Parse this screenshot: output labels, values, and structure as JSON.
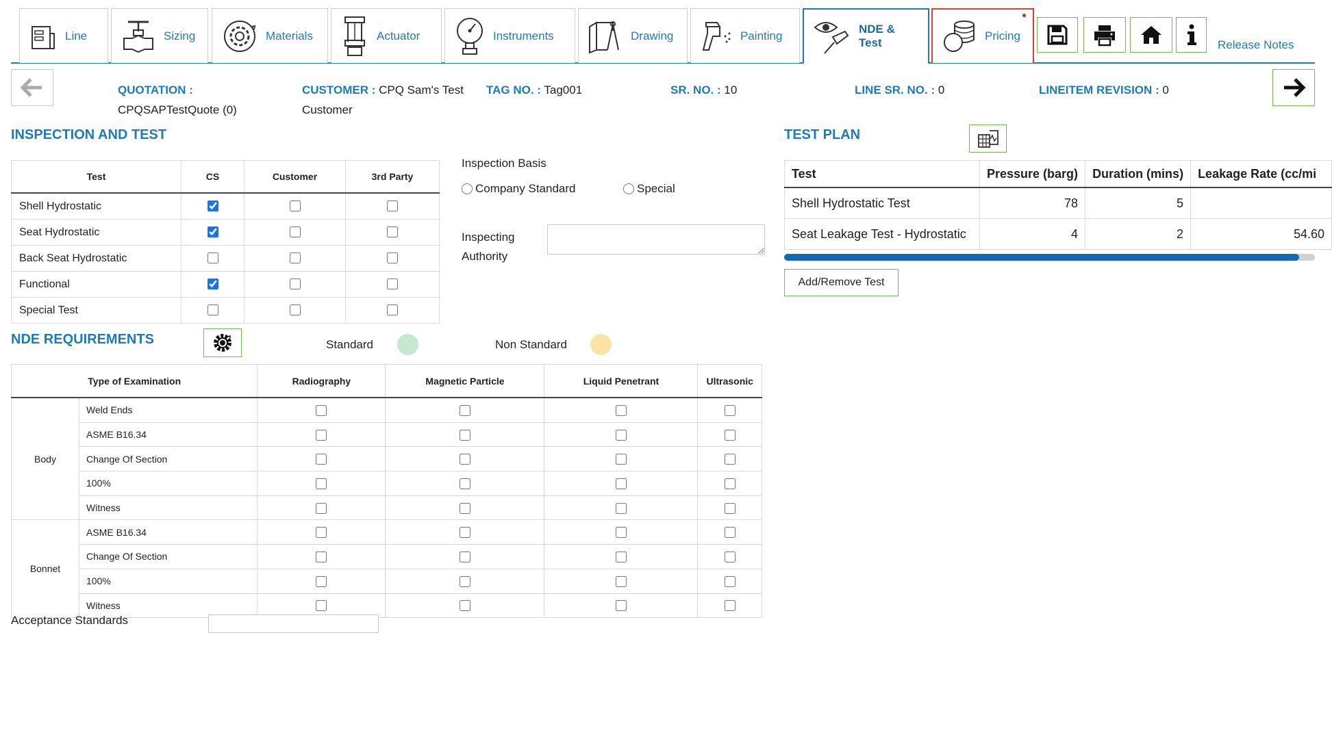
{
  "tabs": [
    {
      "label": "Line",
      "icon": "line-icon"
    },
    {
      "label": "Sizing",
      "icon": "valve-icon"
    },
    {
      "label": "Materials",
      "icon": "gear-cycle-icon"
    },
    {
      "label": "Actuator",
      "icon": "actuator-icon"
    },
    {
      "label": "Instruments",
      "icon": "gauge-icon"
    },
    {
      "label": "Drawing",
      "icon": "drawing-icon"
    },
    {
      "label": "Painting",
      "icon": "spray-gun-icon"
    },
    {
      "label": "NDE & Test",
      "icon": "eye-probe-icon",
      "active": true
    },
    {
      "label": "Pricing",
      "icon": "coins-icon",
      "notification": true
    }
  ],
  "toolbar": {
    "icons": [
      "save-icon",
      "print-icon",
      "home-icon",
      "info-icon"
    ],
    "release_notes": "Release Notes"
  },
  "header": {
    "quotation_label": "QUOTATION :",
    "quotation_value": "CPQSAPTestQuote (0)",
    "customer_label": "CUSTOMER :",
    "customer_value": "CPQ Sam's Test Customer",
    "tag_label": "TAG NO. :",
    "tag_value": "Tag001",
    "sr_label": "SR. NO. :",
    "sr_value": "10",
    "line_sr_label": "LINE SR. NO. :",
    "line_sr_value": "0",
    "revision_label": "LINEITEM REVISION :",
    "revision_value": "0"
  },
  "inspection": {
    "title": "INSPECTION AND TEST",
    "columns": [
      "Test",
      "CS",
      "Customer",
      "3rd Party"
    ],
    "rows": [
      {
        "label": "Shell Hydrostatic",
        "cs": true,
        "customer": false,
        "third": false
      },
      {
        "label": "Seat Hydrostatic",
        "cs": true,
        "customer": false,
        "third": false
      },
      {
        "label": "Back Seat Hydrostatic",
        "cs": false,
        "customer": false,
        "third": false
      },
      {
        "label": "Functional",
        "cs": true,
        "customer": false,
        "third": false
      },
      {
        "label": "Special Test",
        "cs": false,
        "customer": false,
        "third": false
      }
    ],
    "basis_label": "Inspection Basis",
    "basis_options": [
      "Company Standard",
      "Special"
    ],
    "authority_label": "Inspecting Authority",
    "authority_value": ""
  },
  "test_plan": {
    "title": "TEST PLAN",
    "columns": [
      "Test",
      "Pressure (barg)",
      "Duration (mins)",
      "Leakage Rate (cc/mi"
    ],
    "rows": [
      {
        "test": "Shell Hydrostatic Test",
        "pressure": "78",
        "duration": "5",
        "leakage": ""
      },
      {
        "test": "Seat Leakage Test - Hydrostatic",
        "pressure": "4",
        "duration": "2",
        "leakage": "54.60"
      }
    ],
    "scroll_fraction": 0.97,
    "add_remove_label": "Add/Remove Test"
  },
  "nde": {
    "title": "NDE REQUIREMENTS",
    "legend_standard": "Standard",
    "legend_non_standard": "Non Standard",
    "colors": {
      "standard": "#c6e8cf",
      "non_standard": "#fde4a6"
    },
    "columns": [
      "Type of Examination",
      "Radiography",
      "Magnetic Particle",
      "Liquid Penetrant",
      "Ultrasonic"
    ],
    "groups": [
      {
        "name": "Body",
        "items": [
          "Weld Ends",
          "ASME B16.34",
          "Change Of Section",
          "100%",
          "Witness"
        ]
      },
      {
        "name": "Bonnet",
        "items": [
          "ASME B16.34",
          "Change Of Section",
          "100%",
          "Witness"
        ]
      }
    ]
  },
  "acceptance": {
    "label": "Acceptance Standards",
    "value": ""
  },
  "colors": {
    "accent": "#1f7ab8",
    "button_border": "#6fba4a",
    "pricing_border": "#e23a3a",
    "scroll_thumb": "#1668b4"
  }
}
